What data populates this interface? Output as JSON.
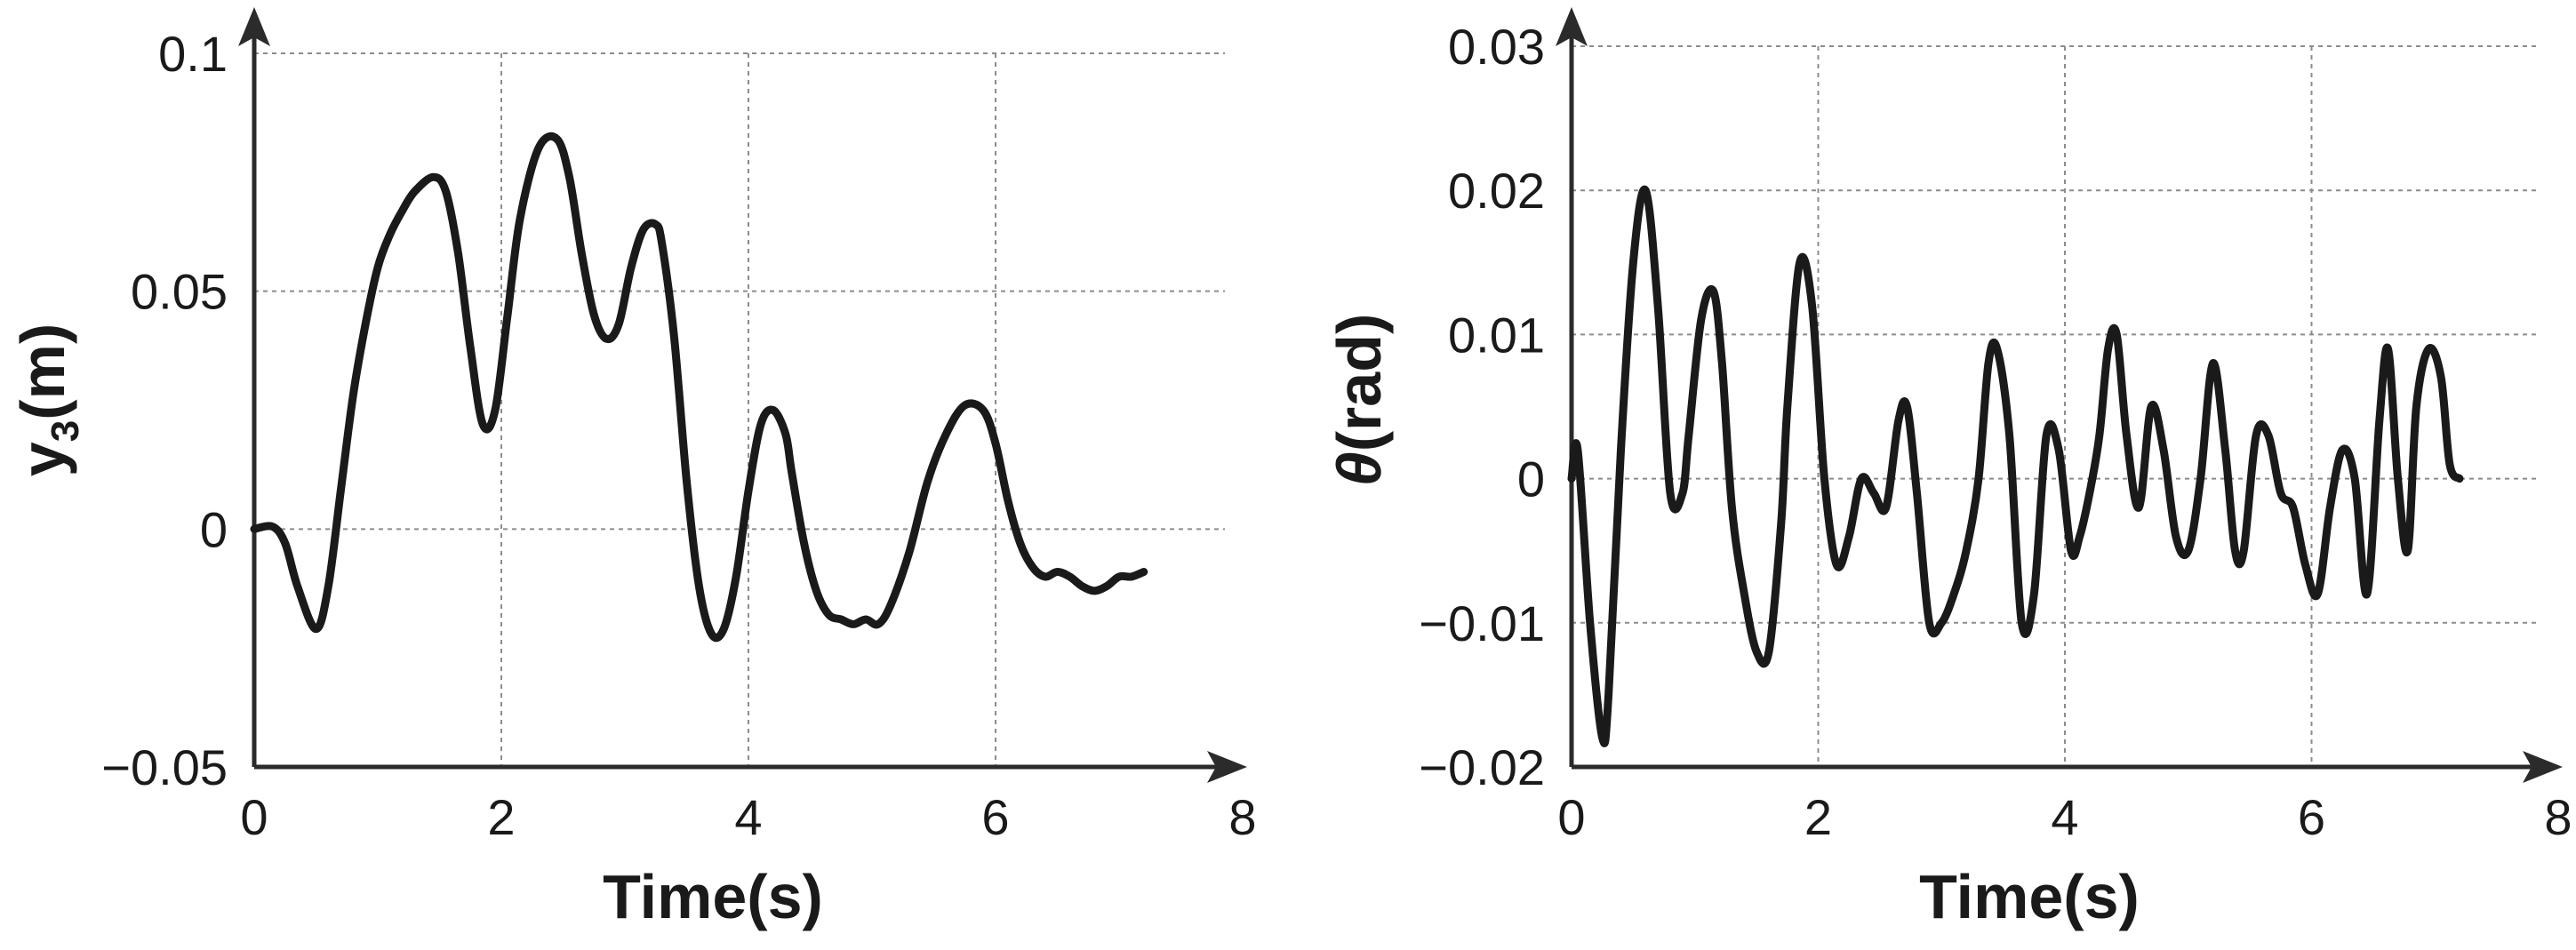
{
  "chart_data": [
    {
      "type": "line",
      "xlabel": "Time(s)",
      "ylabel": "y3(m)",
      "ylabel_main": "y",
      "ylabel_sub": "3",
      "ylabel_unit": "(m)",
      "xlim": [
        0,
        8
      ],
      "ylim": [
        -0.05,
        0.1
      ],
      "xticks": [
        0,
        2,
        4,
        6,
        8
      ],
      "xtick_labels": [
        "0",
        "2",
        "4",
        "6",
        "8"
      ],
      "yticks": [
        -0.05,
        0,
        0.05,
        0.1
      ],
      "ytick_labels": [
        "−0.05",
        "0",
        "0.05",
        "0.1"
      ],
      "grid": true,
      "series": [
        {
          "x": [
            0,
            0.15,
            0.25,
            0.35,
            0.5,
            0.6,
            0.7,
            0.8,
            0.9,
            1.0,
            1.1,
            1.2,
            1.3,
            1.45,
            1.55,
            1.65,
            1.75,
            1.85,
            1.95,
            2.05,
            2.15,
            2.3,
            2.45,
            2.55,
            2.65,
            2.75,
            2.85,
            2.95,
            3.05,
            3.15,
            3.25,
            3.3,
            3.4,
            3.5,
            3.6,
            3.7,
            3.8,
            3.9,
            4.0,
            4.1,
            4.2,
            4.3,
            4.35,
            4.45,
            4.55,
            4.65,
            4.75,
            4.85,
            4.95,
            5.05,
            5.15,
            5.3,
            5.45,
            5.6,
            5.75,
            5.9,
            6.0,
            6.1,
            6.2,
            6.3,
            6.4,
            6.5,
            6.6,
            6.7,
            6.8,
            6.9,
            7.0,
            7.1,
            7.2
          ],
          "y": [
            0,
            0.0005,
            -0.003,
            -0.012,
            -0.021,
            -0.012,
            0.008,
            0.028,
            0.043,
            0.055,
            0.062,
            0.067,
            0.071,
            0.074,
            0.071,
            0.058,
            0.038,
            0.022,
            0.025,
            0.045,
            0.065,
            0.08,
            0.082,
            0.074,
            0.058,
            0.045,
            0.04,
            0.043,
            0.055,
            0.063,
            0.064,
            0.06,
            0.04,
            0.01,
            -0.012,
            -0.022,
            -0.021,
            -0.01,
            0.008,
            0.022,
            0.025,
            0.02,
            0.012,
            -0.003,
            -0.013,
            -0.018,
            -0.019,
            -0.02,
            -0.019,
            -0.02,
            -0.016,
            -0.005,
            0.01,
            0.02,
            0.026,
            0.025,
            0.018,
            0.006,
            -0.003,
            -0.008,
            -0.01,
            -0.009,
            -0.01,
            -0.012,
            -0.013,
            -0.012,
            -0.01,
            -0.01,
            -0.009
          ]
        }
      ]
    },
    {
      "type": "line",
      "xlabel": "Time(s)",
      "ylabel": "θ(rad)",
      "ylabel_symbol": "θ",
      "ylabel_unit": "(rad)",
      "xlim": [
        0,
        8
      ],
      "ylim": [
        -0.02,
        0.03
      ],
      "xticks": [
        0,
        2,
        4,
        6,
        8
      ],
      "xtick_labels": [
        "0",
        "2",
        "4",
        "6",
        "8"
      ],
      "yticks": [
        -0.02,
        -0.01,
        0,
        0.01,
        0.02,
        0.03
      ],
      "ytick_labels": [
        "−0.02",
        "−0.01",
        "0",
        "0.01",
        "0.02",
        "0.03"
      ],
      "grid": true,
      "series": [
        {
          "x": [
            0,
            0.05,
            0.15,
            0.25,
            0.3,
            0.4,
            0.5,
            0.6,
            0.7,
            0.8,
            0.9,
            0.95,
            1.05,
            1.15,
            1.22,
            1.3,
            1.4,
            1.5,
            1.6,
            1.7,
            1.75,
            1.85,
            1.95,
            2.05,
            2.15,
            2.25,
            2.35,
            2.45,
            2.55,
            2.65,
            2.72,
            2.8,
            2.9,
            3.0,
            3.1,
            3.2,
            3.3,
            3.38,
            3.45,
            3.55,
            3.65,
            3.75,
            3.85,
            3.95,
            4.05,
            4.12,
            4.2,
            4.28,
            4.35,
            4.42,
            4.5,
            4.6,
            4.7,
            4.8,
            4.9,
            5.0,
            5.1,
            5.2,
            5.3,
            5.38,
            5.45,
            5.55,
            5.65,
            5.75,
            5.85,
            5.95,
            6.05,
            6.15,
            6.25,
            6.35,
            6.45,
            6.55,
            6.62,
            6.7,
            6.78,
            6.85,
            6.95,
            7.05,
            7.12,
            7.2
          ],
          "y": [
            0,
            0.002,
            -0.01,
            -0.018,
            -0.015,
            0.002,
            0.015,
            0.02,
            0.012,
            -0.001,
            -0.001,
            0.003,
            0.011,
            0.013,
            0.008,
            -0.002,
            -0.008,
            -0.012,
            -0.012,
            -0.003,
            0.005,
            0.015,
            0.012,
            0.0,
            -0.006,
            -0.004,
            0.0,
            -0.001,
            -0.002,
            0.004,
            0.005,
            -0.001,
            -0.01,
            -0.01,
            -0.008,
            -0.005,
            0.0,
            0.008,
            0.009,
            0.003,
            -0.01,
            -0.008,
            0.003,
            0.002,
            -0.005,
            -0.004,
            -0.001,
            0.003,
            0.009,
            0.01,
            0.003,
            -0.002,
            0.005,
            0.002,
            -0.004,
            -0.005,
            0.0,
            0.008,
            0.002,
            -0.005,
            -0.005,
            0.003,
            0.003,
            -0.001,
            -0.002,
            -0.006,
            -0.008,
            -0.002,
            0.002,
            0.0,
            -0.008,
            0.004,
            0.009,
            0.0,
            -0.005,
            0.005,
            0.009,
            0.007,
            0.001,
            0.0
          ]
        }
      ]
    }
  ]
}
